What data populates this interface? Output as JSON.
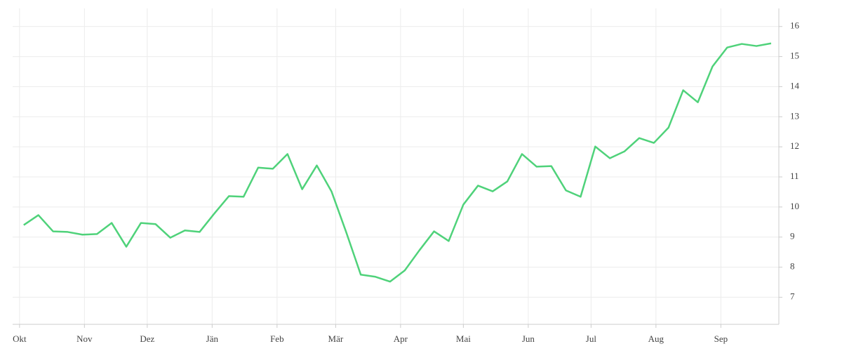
{
  "chart_data": {
    "type": "line",
    "x": [
      2,
      9,
      16,
      23,
      30,
      37,
      44,
      51,
      58,
      65,
      72,
      79,
      86,
      93,
      100,
      107,
      114,
      121,
      128,
      135,
      142,
      149,
      156,
      163,
      170,
      177,
      184,
      191,
      198,
      205,
      212,
      219,
      226,
      233,
      240,
      247,
      254,
      261,
      268,
      275,
      282,
      289,
      296,
      303,
      310,
      317,
      324,
      331,
      338,
      345,
      352,
      359
    ],
    "series": [
      {
        "color": "#4fd27a",
        "values": [
          9.4,
          9.73,
          9.19,
          9.17,
          9.08,
          9.1,
          9.47,
          8.68,
          9.47,
          9.43,
          8.98,
          9.22,
          9.17,
          9.78,
          10.36,
          10.34,
          11.31,
          11.27,
          11.76,
          10.59,
          11.38,
          10.52,
          9.17,
          7.75,
          7.68,
          7.52,
          7.89,
          8.56,
          9.19,
          8.87,
          10.08,
          10.71,
          10.52,
          10.85,
          11.76,
          11.34,
          11.36,
          10.55,
          10.34,
          12.01,
          11.62,
          11.85,
          12.29,
          12.13,
          12.64,
          13.88,
          13.48,
          14.67,
          15.3,
          15.42,
          15.35,
          15.44
        ]
      }
    ],
    "xlim": [
      -3.3,
      362.7
    ],
    "xticks": [
      {
        "value": 0,
        "label": "Okt"
      },
      {
        "value": 31,
        "label": "Nov"
      },
      {
        "value": 61,
        "label": "Dez"
      },
      {
        "value": 92,
        "label": "Jän"
      },
      {
        "value": 123,
        "label": "Feb"
      },
      {
        "value": 151,
        "label": "Mär"
      },
      {
        "value": 182,
        "label": "Apr"
      },
      {
        "value": 212,
        "label": "Mai"
      },
      {
        "value": 243,
        "label": "Jun"
      },
      {
        "value": 273,
        "label": "Jul"
      },
      {
        "value": 304,
        "label": "Aug"
      },
      {
        "value": 335,
        "label": "Sep"
      }
    ],
    "ylim": [
      6.1,
      16.6
    ],
    "yticks": [
      7,
      8,
      9,
      10,
      11,
      12,
      13,
      14,
      15,
      16
    ],
    "grid": true
  }
}
